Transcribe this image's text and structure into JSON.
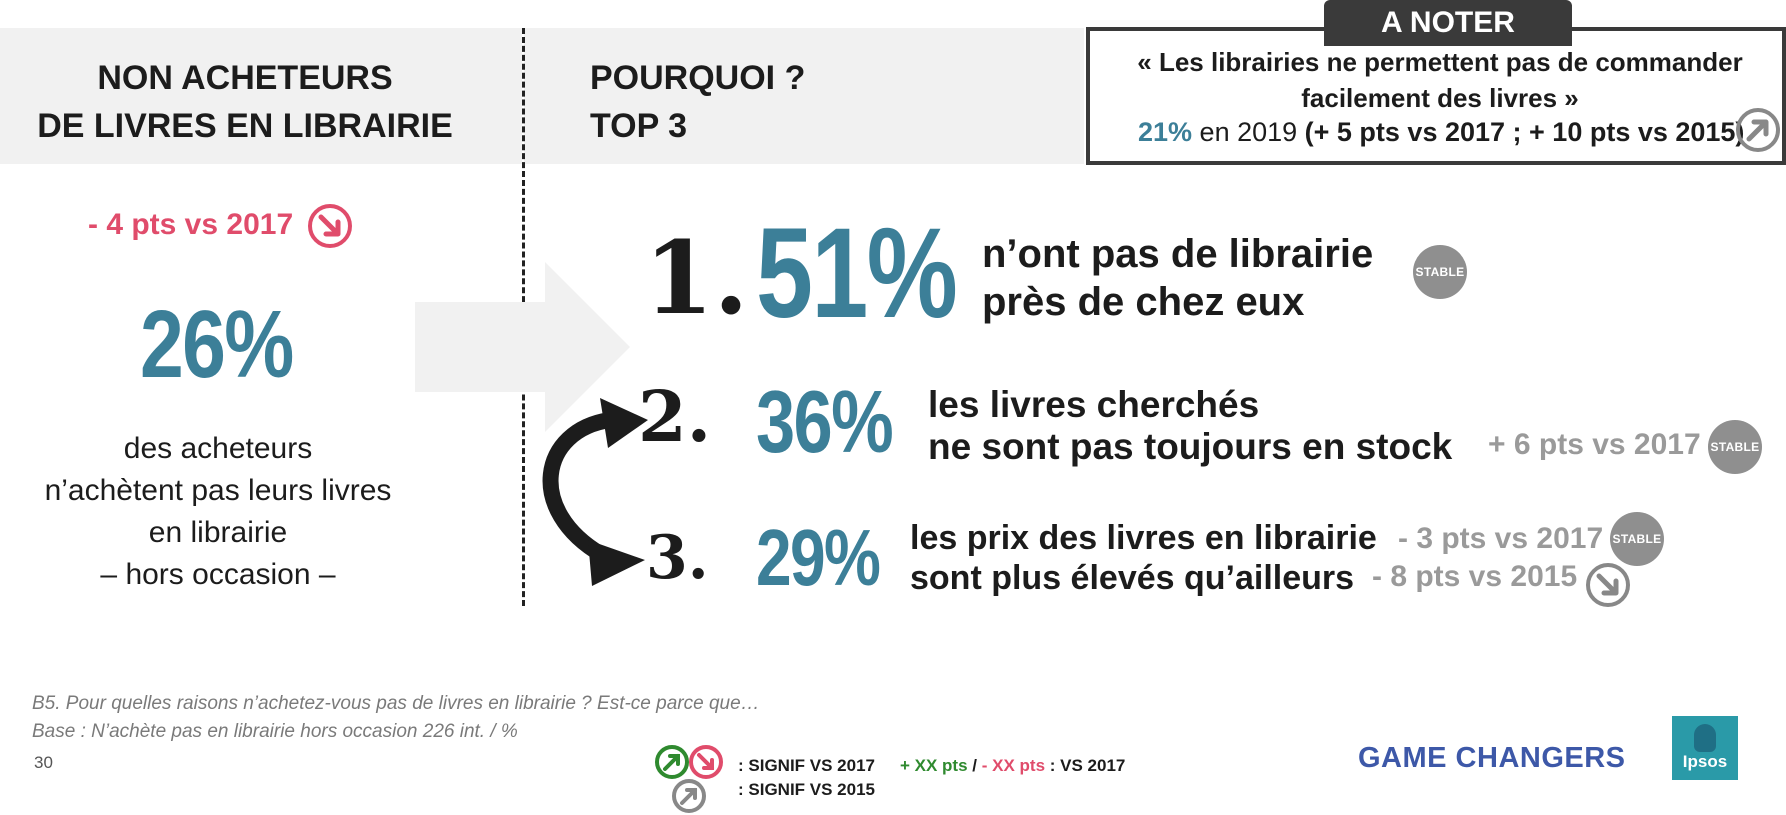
{
  "header": {
    "left_title_line1": "NON ACHETEURS",
    "left_title_line2": "DE LIVRES EN LIBRAIRIE",
    "mid_title_line1": "POURQUOI ?",
    "mid_title_line2": "TOP 3"
  },
  "note": {
    "tab": "A NOTER",
    "quote_line1": "« Les librairies ne permettent pas de commander",
    "quote_line2": "facilement des livres »",
    "pct": "21%",
    "year": " en 2019  ",
    "delta": "(+ 5 pts vs 2017 ; + 10 pts vs 2015)",
    "icon": "trend-up-icon"
  },
  "left": {
    "delta": "- 4 pts vs 2017",
    "pct": "26%",
    "desc_line1": "des acheteurs",
    "desc_line2": "n’achètent pas leurs livres",
    "desc_line3": "en librairie",
    "desc_line4": "– hors occasion –",
    "accent": "#e04c6b"
  },
  "items": [
    {
      "rank": "1.",
      "pct": "51%",
      "label_line1": "n’ont pas de librairie",
      "label_line2": "près de chez eux",
      "badge": "STABLE"
    },
    {
      "rank": "2.",
      "pct": "36%",
      "label_line1": "les livres cherchés",
      "label_line2": "ne sont pas toujours en stock",
      "delta": "+ 6 pts vs 2017",
      "badge": "STABLE"
    },
    {
      "rank": "3.",
      "pct": "29%",
      "label_line1": "les prix des livres en librairie",
      "label_line2": "sont plus élevés qu’ailleurs",
      "delta_a": "- 3 pts vs 2017",
      "badge": "STABLE",
      "delta_b": "- 8 pts vs 2015",
      "icon": "trend-down-icon"
    }
  ],
  "footer": {
    "question": "B5. Pour quelles raisons n’achetez-vous pas de livres en librairie ? Est-ce parce que…",
    "base": "Base : N’achète pas en librairie hors occasion 226 int.  / %",
    "page": "30",
    "legend_signif_2017": ": SIGNIF VS 2017",
    "legend_signif_2015": ": SIGNIF VS 2015",
    "legend_plus": "+ XX pts",
    "legend_sep": " / ",
    "legend_minus": "- XX pts",
    "legend_vs": " : VS 2017",
    "brand": "GAME CHANGERS",
    "logo": "Ipsos"
  },
  "colors": {
    "accent_blue": "#3c7f98",
    "accent_red": "#e04c6b",
    "accent_green": "#2f8a2f",
    "grey": "#9a9a9a",
    "brand_blue": "#3d58a8"
  }
}
